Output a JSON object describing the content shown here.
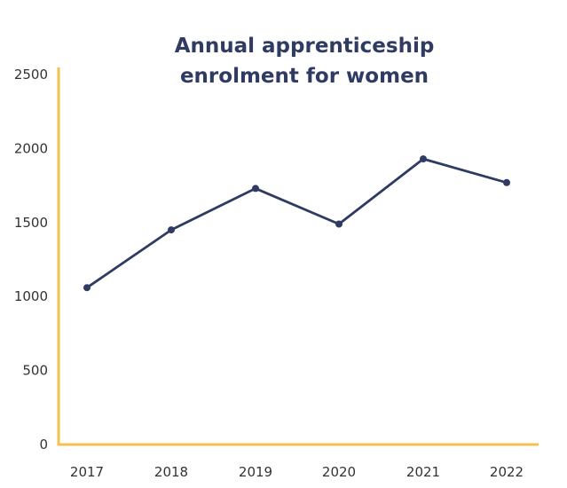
{
  "chart_data": {
    "type": "line",
    "title_lines": [
      "Annual apprenticeship",
      "enrolment for women"
    ],
    "xlabel": "",
    "ylabel": "",
    "categories": [
      "2017",
      "2018",
      "2019",
      "2020",
      "2021",
      "2022"
    ],
    "series": [
      {
        "values": [
          1060,
          1450,
          1730,
          1490,
          1930,
          1770
        ]
      }
    ],
    "ylim": [
      0,
      2500
    ],
    "yticks": [
      "0",
      "500",
      "1000",
      "1500",
      "2000",
      "2500"
    ],
    "grid": false,
    "legend": "none",
    "colors": {
      "line": "#2f3b63",
      "axis": "#f2c14e",
      "title": "#2f3b63",
      "text": "#333333"
    }
  }
}
